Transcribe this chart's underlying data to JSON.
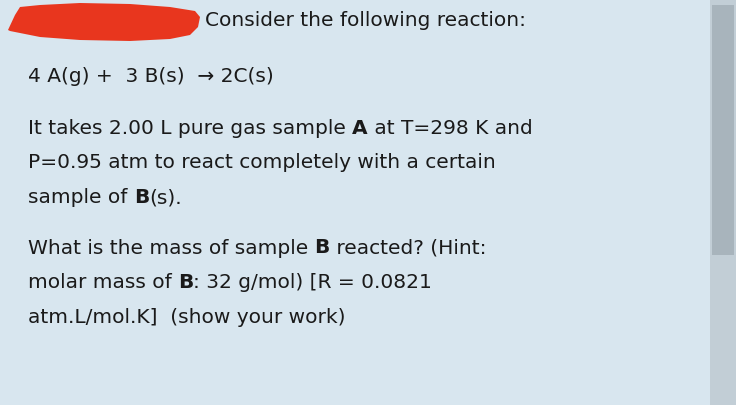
{
  "background_color": "#d8e6ef",
  "redacted_color": "#e8361e",
  "text_color": "#1a1a1a",
  "header_text": "Consider the following reaction:",
  "reaction_text": "4 A(g) +  3 B(s)  → 2C(s)",
  "p1_line1_pre": "It takes 2.00 L pure gas sample ",
  "p1_line1_bold": "A",
  "p1_line1_post": " at T=298 K and",
  "p1_line2": "P=0.95 atm to react completely with a certain",
  "p1_line3_pre": "sample of ",
  "p1_line3_bold": "B",
  "p1_line3_post": "(s).",
  "p2_line1_pre": "What is the mass of sample ",
  "p2_line1_bold": "B",
  "p2_line1_post": " reacted? (Hint:",
  "p2_line2_pre": "molar mass of ",
  "p2_line2_bold": "B",
  "p2_line2_post": ": 32 g/mol) [R = 0.0821",
  "p2_line3": "atm.L/mol.K]  (show your work)",
  "fontsize": 14.5,
  "header_fontsize": 14.5,
  "scrollbar_bg": "#c2ced6",
  "scrollbar_thumb": "#a8b4bc"
}
